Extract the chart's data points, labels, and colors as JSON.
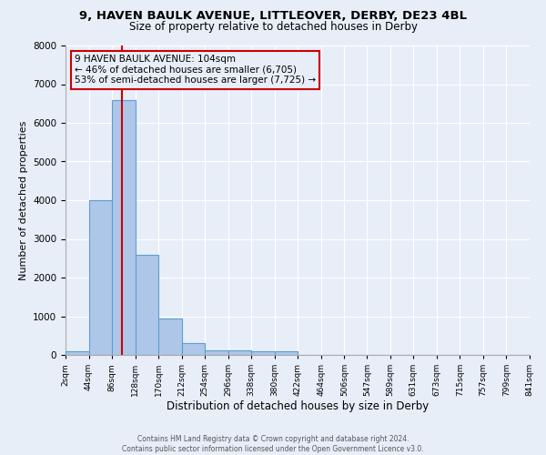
{
  "title1": "9, HAVEN BAULK AVENUE, LITTLEOVER, DERBY, DE23 4BL",
  "title2": "Size of property relative to detached houses in Derby",
  "xlabel": "Distribution of detached houses by size in Derby",
  "ylabel": "Number of detached properties",
  "footer1": "Contains HM Land Registry data © Crown copyright and database right 2024.",
  "footer2": "Contains public sector information licensed under the Open Government Licence v3.0.",
  "bin_edges": [
    2,
    44,
    86,
    128,
    170,
    212,
    254,
    296,
    338,
    380,
    422,
    464,
    506,
    547,
    589,
    631,
    673,
    715,
    757,
    799,
    841
  ],
  "bar_heights": [
    100,
    4000,
    6600,
    2600,
    950,
    300,
    120,
    120,
    100,
    100,
    0,
    0,
    0,
    0,
    0,
    0,
    0,
    0,
    0,
    0
  ],
  "bar_color": "#aec6e8",
  "bar_edge_color": "#5a9fd4",
  "bg_color": "#e8eef8",
  "grid_color": "#ffffff",
  "red_line_x": 104,
  "annotation_line1": "9 HAVEN BAULK AVENUE: 104sqm",
  "annotation_line2": "← 46% of detached houses are smaller (6,705)",
  "annotation_line3": "53% of semi-detached houses are larger (7,725) →",
  "annotation_box_color": "#cc0000",
  "ylim": [
    0,
    8000
  ],
  "yticks": [
    0,
    1000,
    2000,
    3000,
    4000,
    5000,
    6000,
    7000,
    8000
  ],
  "tick_labels": [
    "2sqm",
    "44sqm",
    "86sqm",
    "128sqm",
    "170sqm",
    "212sqm",
    "254sqm",
    "296sqm",
    "338sqm",
    "380sqm",
    "422sqm",
    "464sqm",
    "506sqm",
    "547sqm",
    "589sqm",
    "631sqm",
    "673sqm",
    "715sqm",
    "757sqm",
    "799sqm",
    "841sqm"
  ],
  "title1_fontsize": 9.5,
  "title2_fontsize": 8.5,
  "ylabel_fontsize": 8.0,
  "xlabel_fontsize": 8.5,
  "tick_fontsize": 6.5,
  "ytick_fontsize": 7.5,
  "ann_fontsize": 7.5,
  "footer_fontsize": 5.5
}
